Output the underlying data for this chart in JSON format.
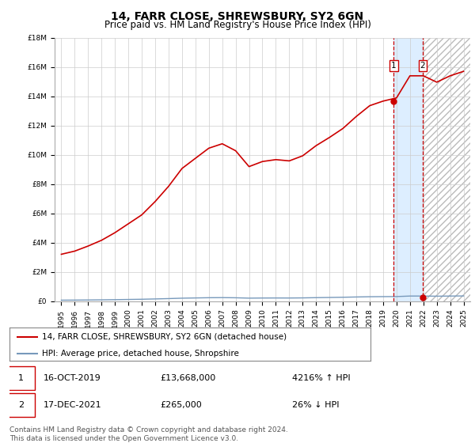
{
  "title": "14, FARR CLOSE, SHREWSBURY, SY2 6GN",
  "subtitle": "Price paid vs. HM Land Registry's House Price Index (HPI)",
  "xlim_left": 1994.5,
  "xlim_right": 2025.5,
  "ylim_bottom": 0,
  "ylim_top": 18000000,
  "yticks": [
    0,
    2000000,
    4000000,
    6000000,
    8000000,
    10000000,
    12000000,
    14000000,
    16000000,
    18000000
  ],
  "ytick_labels": [
    "£0",
    "£2M",
    "£4M",
    "£6M",
    "£8M",
    "£10M",
    "£12M",
    "£14M",
    "£16M",
    "£18M"
  ],
  "xticks": [
    1995,
    1996,
    1997,
    1998,
    1999,
    2000,
    2001,
    2002,
    2003,
    2004,
    2005,
    2006,
    2007,
    2008,
    2009,
    2010,
    2011,
    2012,
    2013,
    2014,
    2015,
    2016,
    2017,
    2018,
    2019,
    2020,
    2021,
    2022,
    2023,
    2024,
    2025
  ],
  "transaction1_x": 2019.79,
  "transaction1_y": 13668000,
  "transaction2_x": 2021.96,
  "transaction2_y": 265000,
  "transaction1_date": "16-OCT-2019",
  "transaction1_price": "£13,668,000",
  "transaction1_hpi": "4216% ↑ HPI",
  "transaction2_date": "17-DEC-2021",
  "transaction2_price": "£265,000",
  "transaction2_hpi": "26% ↓ HPI",
  "legend_line1": "14, FARR CLOSE, SHREWSBURY, SY2 6GN (detached house)",
  "legend_line2": "HPI: Average price, detached house, Shropshire",
  "footer": "Contains HM Land Registry data © Crown copyright and database right 2024.\nThis data is licensed under the Open Government Licence v3.0.",
  "red_color": "#cc0000",
  "blue_color": "#7799bb",
  "shade_color": "#ddeeff",
  "hatch_color": "#cccccc",
  "grid_color": "#cccccc",
  "title_fontsize": 10,
  "subtitle_fontsize": 8.5,
  "tick_fontsize": 6.5,
  "legend_fontsize": 7.5,
  "footer_fontsize": 6.5,
  "hpi_years": [
    1995,
    1996,
    1997,
    1998,
    1999,
    2000,
    2001,
    2002,
    2003,
    2004,
    2005,
    2006,
    2007,
    2008,
    2009,
    2010,
    2011,
    2012,
    2013,
    2014,
    2015,
    2016,
    2017,
    2018,
    2019,
    2020,
    2021,
    2022,
    2023,
    2024,
    2025
  ],
  "hpi_values": [
    74000,
    79000,
    87000,
    96000,
    108000,
    122000,
    136000,
    157000,
    181000,
    209000,
    225000,
    241000,
    248000,
    237000,
    212000,
    220000,
    223000,
    221000,
    229000,
    245000,
    258000,
    272000,
    291000,
    308000,
    315000,
    320000,
    355000,
    355000,
    345000,
    355000,
    362000
  ],
  "red_line_years": [
    1995,
    1996,
    1997,
    1998,
    1999,
    2000,
    2001,
    2002,
    2003,
    2004,
    2005,
    2006,
    2007,
    2008,
    2009,
    2010,
    2011,
    2012,
    2013,
    2014,
    2015,
    2016,
    2017,
    2018,
    2019,
    2020,
    2021,
    2022,
    2023,
    2024,
    2025
  ],
  "red_line_values": [
    3207040,
    3423840,
    3770720,
    4163520,
    4683648,
    5291424,
    5899296,
    6811872,
    7849824,
    9066336,
    9760800,
    10451424,
    10754880,
    10278048,
    9194784,
    9541920,
    9671424,
    9584832,
    9931776,
    10625040,
    11186640,
    11797344,
    12619248,
    13355280,
    13668000,
    13884960,
    15395280,
    15395280,
    14960520,
    15395280,
    15700000
  ]
}
